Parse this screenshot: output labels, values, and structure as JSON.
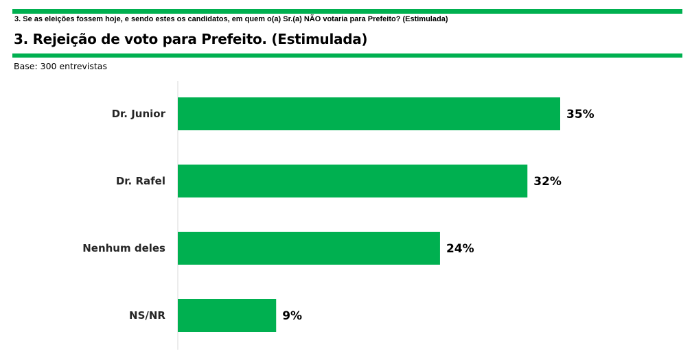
{
  "header": {
    "question": "3. Se as eleições fossem hoje, e sendo estes os candidatos, em quem o(a) Sr.(a) NÃO votaria para Prefeito? (Estimulada)",
    "title": "3. Rejeição de voto para Prefeito. (Estimulada)",
    "base": "Base: 300 entrevistas"
  },
  "colors": {
    "accent": "#00b050",
    "axis": "#d9d9d9"
  },
  "chart_data": {
    "type": "bar",
    "orientation": "horizontal",
    "categories": [
      "Dr. Junior",
      "Dr. Rafel",
      "Nenhum deles",
      "NS/NR"
    ],
    "values": [
      35,
      32,
      24,
      9
    ],
    "value_labels": [
      "35%",
      "32%",
      "24%",
      "9%"
    ],
    "unit": "%",
    "xlim": [
      0,
      40
    ],
    "grid": false,
    "legend": "none"
  }
}
